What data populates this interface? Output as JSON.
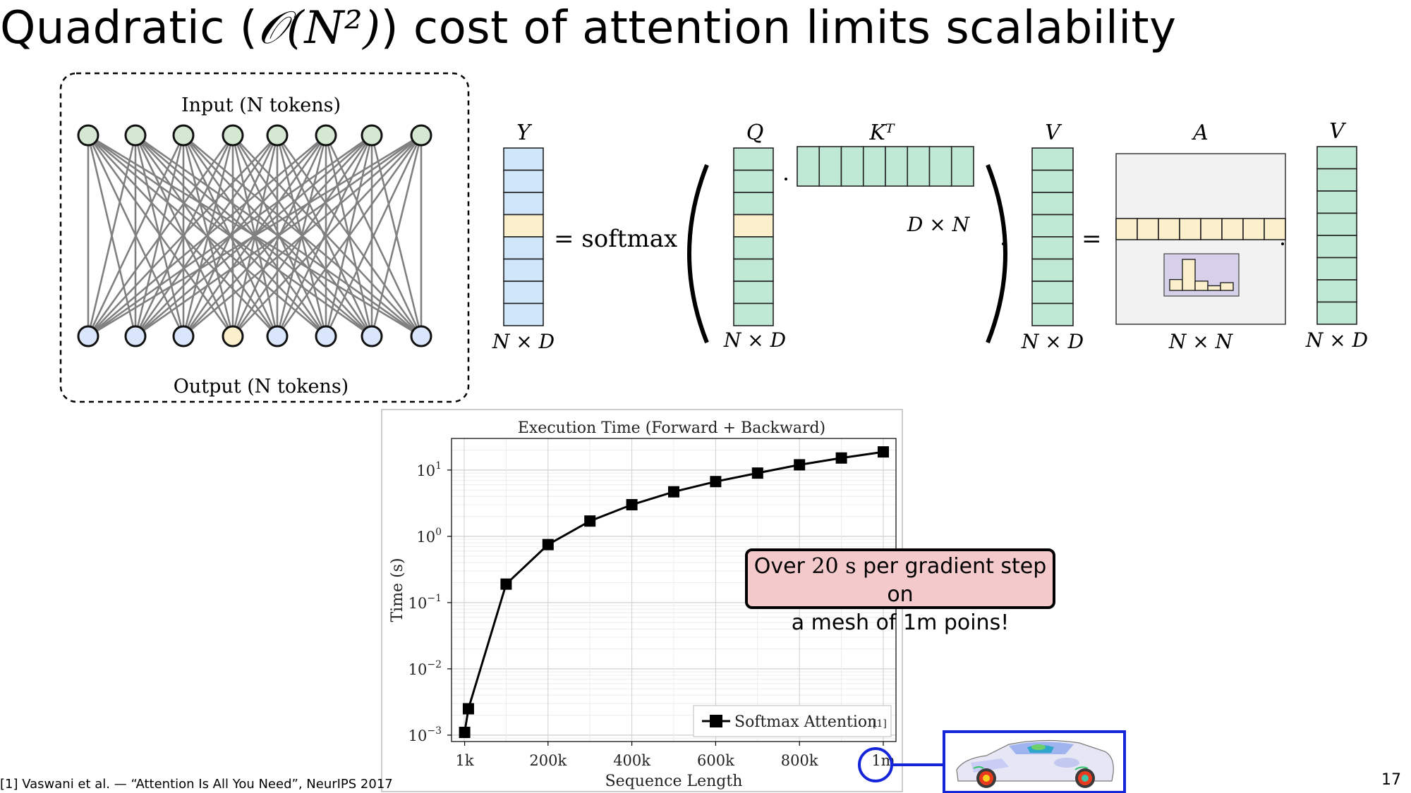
{
  "slide": {
    "title_prefix": "Quadratic (",
    "title_math": "𝒪(N²)",
    "title_suffix": ") cost of attention limits scalability",
    "page_number": "17",
    "footnote": "[1] Vaswani et al. — “Attention Is All You Need”, NeurIPS 2017"
  },
  "network": {
    "input_label": "Input (N tokens)",
    "output_label": "Output (N tokens)",
    "input_node_color": "#d4e8d2",
    "output_node_color": "#d9e6fb",
    "highlight_node_color": "#fcf0cc"
  },
  "equation": {
    "y_label": "Y",
    "q_label": "Q",
    "kt_label": "Kᵀ",
    "v_label": "V",
    "a_label": "A",
    "v2_label": "V",
    "softmax_text": "= softmax",
    "equals_text": "=",
    "dim_y": "N × D",
    "dim_q": "N × D",
    "dim_kt": "D × N",
    "dim_v": "N × D",
    "dim_a": "N × N",
    "dim_v2": "N × D",
    "y_color": "#cfe6fb",
    "qk_color": "#bfe9d4",
    "highlight_color": "#fcf0cc",
    "a_bg": "#f2f2f2",
    "hist_bg": "#d6d0ea",
    "hist_values": [
      0.35,
      1.0,
      0.3,
      0.15,
      0.25
    ]
  },
  "chart_data": {
    "type": "line",
    "title": "Execution Time (Forward + Backward)",
    "xlabel": "Sequence Length",
    "ylabel": "Time (s)",
    "yscale": "log",
    "xlim": [
      0,
      1000000
    ],
    "ylim": [
      0.0008,
      30
    ],
    "x_ticks": [
      {
        "value": 1000,
        "label": "1k"
      },
      {
        "value": 200000,
        "label": "200k"
      },
      {
        "value": 400000,
        "label": "400k"
      },
      {
        "value": 600000,
        "label": "600k"
      },
      {
        "value": 800000,
        "label": "800k"
      },
      {
        "value": 1000000,
        "label": "1m"
      }
    ],
    "y_ticks": [
      {
        "value": 0.001,
        "base": "10",
        "exp": "−3"
      },
      {
        "value": 0.01,
        "base": "10",
        "exp": "−2"
      },
      {
        "value": 0.1,
        "base": "10",
        "exp": "−1"
      },
      {
        "value": 1,
        "base": "10",
        "exp": "0"
      },
      {
        "value": 10,
        "base": "10",
        "exp": "1"
      }
    ],
    "grid": true,
    "legend_position": "bottom-right",
    "series": [
      {
        "name": "Softmax Attention",
        "name_ref": "[1]",
        "color": "#000000",
        "x": [
          1000,
          10000,
          100000,
          200000,
          300000,
          400000,
          500000,
          600000,
          700000,
          800000,
          900000,
          1000000
        ],
        "y": [
          0.0011,
          0.0025,
          0.19,
          0.75,
          1.7,
          3.0,
          4.7,
          6.7,
          9.0,
          12.0,
          15.2,
          18.8
        ]
      }
    ]
  },
  "callout": {
    "line1_prefix": "Over ",
    "line1_value": "20",
    "line1_unit": "s",
    "line1_suffix": " per gradient step on",
    "line2": "a mesh of 1m poins!"
  },
  "highlight_box_color": "#1525d9"
}
